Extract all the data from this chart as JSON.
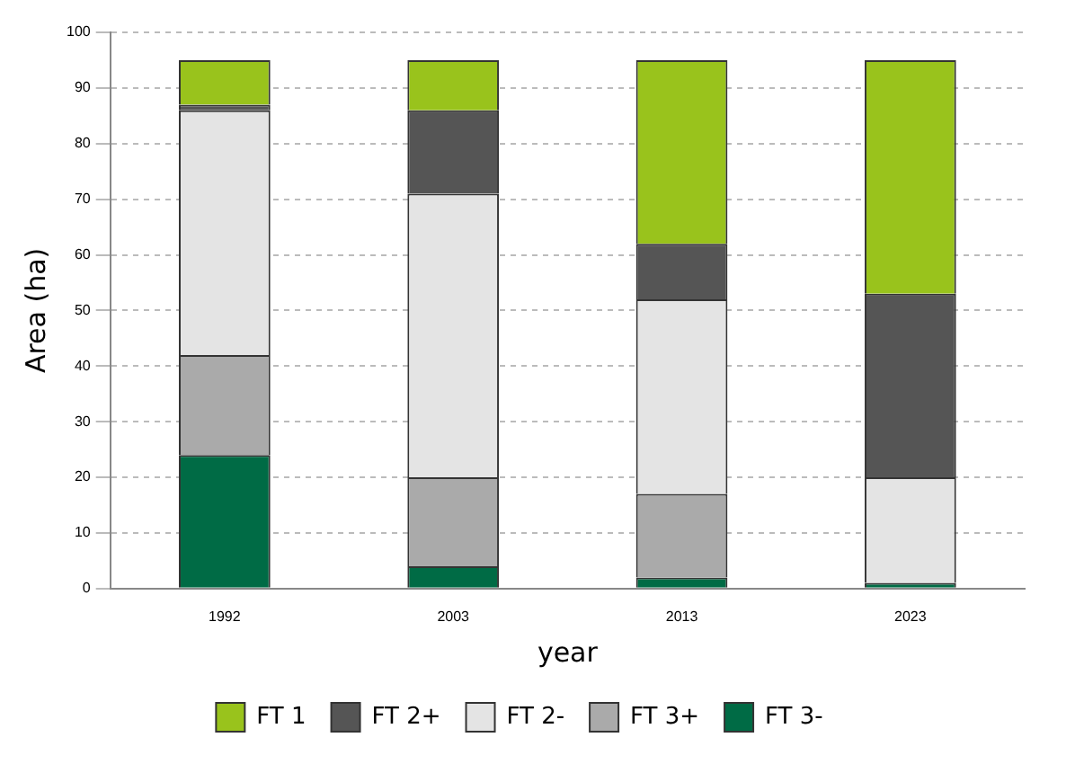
{
  "chart_data": {
    "type": "bar",
    "xlabel": "year",
    "ylabel": "Area (ha)",
    "categories": [
      "1992",
      "2003",
      "2013",
      "2023"
    ],
    "stacked": true,
    "ylim": [
      0,
      100
    ],
    "yticks": [
      0,
      10,
      20,
      30,
      40,
      50,
      60,
      70,
      80,
      90,
      100
    ],
    "grid": "y",
    "legend": "bottom",
    "series": [
      {
        "name": "FT 3-",
        "color": "#006b45",
        "values": [
          24,
          4,
          2,
          1
        ]
      },
      {
        "name": "FT 3+",
        "color": "#aaaaaa",
        "values": [
          18,
          16,
          15,
          0
        ]
      },
      {
        "name": "FT 2-",
        "color": "#e4e4e4",
        "values": [
          44,
          51,
          35,
          19
        ]
      },
      {
        "name": "FT 2+",
        "color": "#555555",
        "values": [
          1,
          15,
          10,
          33
        ]
      },
      {
        "name": "FT 1",
        "color": "#99c31c",
        "values": [
          8,
          9,
          33,
          42
        ]
      }
    ]
  }
}
